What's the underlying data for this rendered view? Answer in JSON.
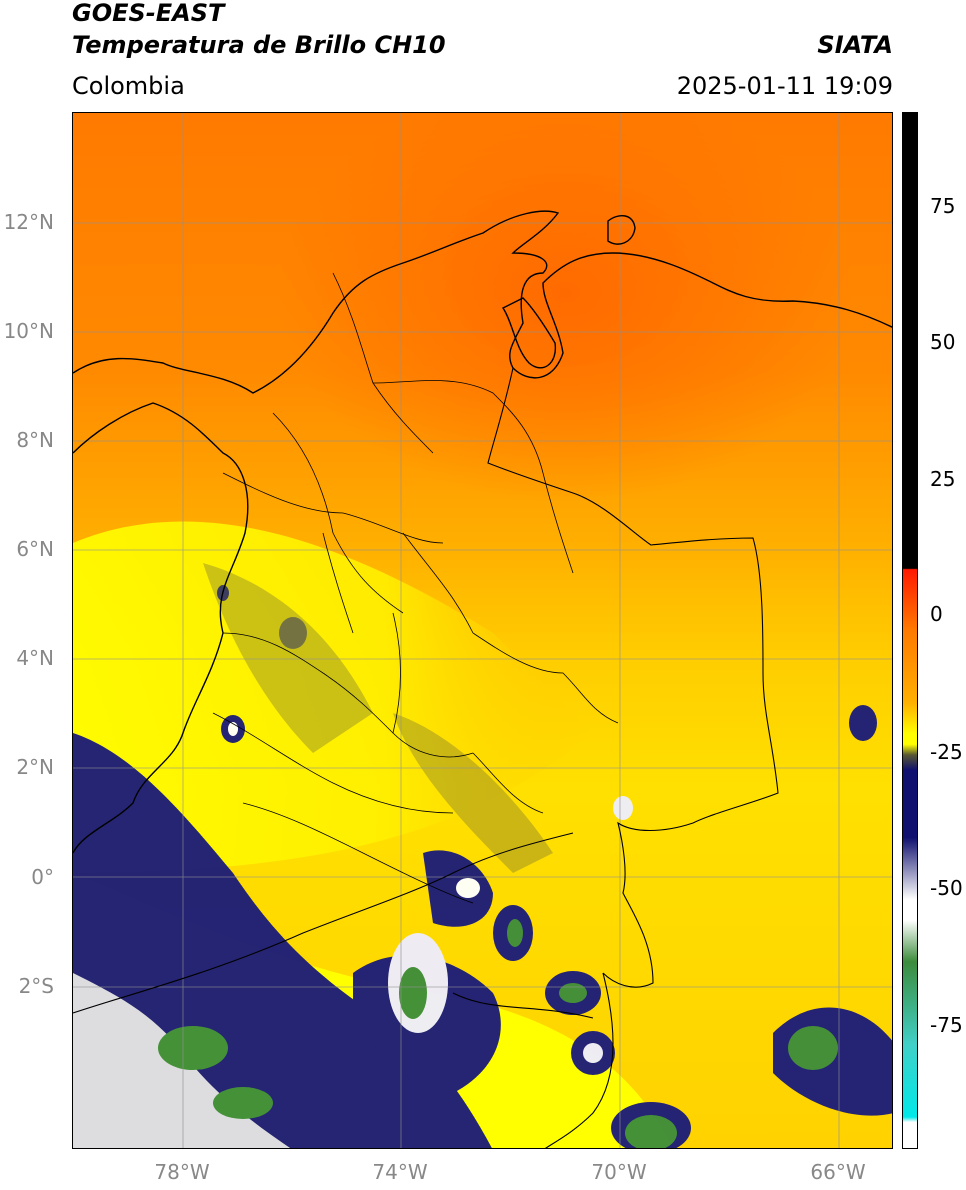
{
  "header": {
    "satellite": "GOES-EAST",
    "product": "Temperatura de Brillo CH10",
    "source": "SIATA",
    "region": "Colombia",
    "datetime": "2025-01-11 19:09"
  },
  "map": {
    "lat_ticks": [
      "12°N",
      "10°N",
      "8°N",
      "6°N",
      "4°N",
      "2°N",
      "0°",
      "2°S"
    ],
    "lon_ticks": [
      "78°W",
      "74°W",
      "70°W",
      "66°W"
    ],
    "extent": {
      "lon_min": -80,
      "lon_max": -65,
      "lat_min": -5,
      "lat_max": 14
    },
    "features": [
      "coastlines",
      "country borders",
      "department borders",
      "graticule"
    ]
  },
  "colorbar": {
    "ticks": [
      "75",
      "50",
      "25",
      "0",
      "-25",
      "-50",
      "-75"
    ],
    "range": [
      -95,
      90
    ],
    "colors": {
      "black": "#000000",
      "red": "#ff1a00",
      "orange": "#ff7a00",
      "yellow": "#ffff00",
      "olive": "#5a5a32",
      "navy": "#101070",
      "white": "#ffffff",
      "green": "#3c8c3c",
      "teal": "#40d0c8",
      "cyan": "#00e8e8"
    }
  }
}
